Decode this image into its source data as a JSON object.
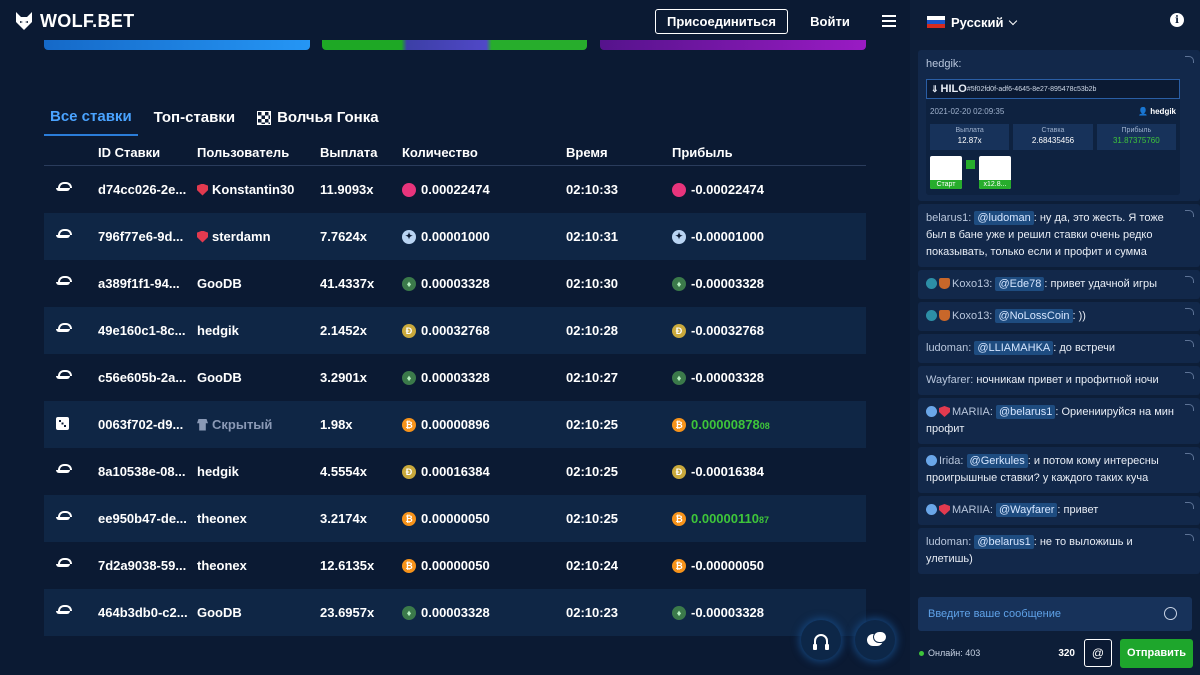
{
  "header": {
    "logo_text": "WOLF.BET",
    "join_label": "Присоединиться",
    "login_label": "Войти"
  },
  "tabs": [
    {
      "label": "Все ставки",
      "active": true
    },
    {
      "label": "Топ-ставки",
      "active": false
    },
    {
      "label": "Волчья Гонка",
      "active": false
    }
  ],
  "table": {
    "columns": [
      "ID Ставки",
      "Пользователь",
      "Выплата",
      "Количество",
      "Время",
      "Прибыль"
    ],
    "rows": [
      {
        "game": "hilo",
        "id": "d74cc026-2e...",
        "user": "Konstantin30",
        "user_badge": "shield",
        "payout": "11.9093x",
        "coin": "cake",
        "amount": "0.00022474",
        "time": "02:10:33",
        "profit": "-0.00022474",
        "profit_small": "",
        "win": false
      },
      {
        "game": "hilo",
        "id": "796f77e6-9d...",
        "user": "sterdamn",
        "user_badge": "shield",
        "payout": "7.7624x",
        "coin": "xlm",
        "amount": "0.00001000",
        "time": "02:10:31",
        "profit": "-0.00001000",
        "profit_small": "",
        "win": false
      },
      {
        "game": "hilo",
        "id": "a389f1f1-94...",
        "user": "GooDB",
        "user_badge": "",
        "payout": "41.4337x",
        "coin": "etc",
        "amount": "0.00003328",
        "time": "02:10:30",
        "profit": "-0.00003328",
        "profit_small": "",
        "win": false
      },
      {
        "game": "hilo",
        "id": "49e160c1-8c...",
        "user": "hedgik",
        "user_badge": "",
        "payout": "2.1452x",
        "coin": "doge",
        "amount": "0.00032768",
        "time": "02:10:28",
        "profit": "-0.00032768",
        "profit_small": "",
        "win": false
      },
      {
        "game": "hilo",
        "id": "c56e605b-2a...",
        "user": "GooDB",
        "user_badge": "",
        "payout": "3.2901x",
        "coin": "etc",
        "amount": "0.00003328",
        "time": "02:10:27",
        "profit": "-0.00003328",
        "profit_small": "",
        "win": false
      },
      {
        "game": "dice",
        "id": "0063f702-d9...",
        "user": "Скрытый",
        "user_badge": "spy",
        "payout": "1.98x",
        "coin": "btc",
        "amount": "0.00000896",
        "time": "02:10:25",
        "profit": "0.00000878",
        "profit_small": "08",
        "win": true
      },
      {
        "game": "hilo",
        "id": "8a10538e-08...",
        "user": "hedgik",
        "user_badge": "",
        "payout": "4.5554x",
        "coin": "doge",
        "amount": "0.00016384",
        "time": "02:10:25",
        "profit": "-0.00016384",
        "profit_small": "",
        "win": false
      },
      {
        "game": "hilo",
        "id": "ee950b47-de...",
        "user": "theonex",
        "user_badge": "",
        "payout": "3.2174x",
        "coin": "btc",
        "amount": "0.00000050",
        "time": "02:10:25",
        "profit": "0.00000110",
        "profit_small": "87",
        "win": true
      },
      {
        "game": "hilo",
        "id": "7d2a9038-59...",
        "user": "theonex",
        "user_badge": "",
        "payout": "12.6135x",
        "coin": "btc",
        "amount": "0.00000050",
        "time": "02:10:24",
        "profit": "-0.00000050",
        "profit_small": "",
        "win": false
      },
      {
        "game": "hilo",
        "id": "464b3db0-c2...",
        "user": "GooDB",
        "user_badge": "",
        "payout": "23.6957x",
        "coin": "etc",
        "amount": "0.00003328",
        "time": "02:10:23",
        "profit": "-0.00003328",
        "profit_small": "",
        "win": false
      }
    ]
  },
  "chat": {
    "language": "Русский",
    "first_message": {
      "nick": "hedgik:",
      "card": {
        "title": "HILO",
        "id": "#5f02fd0f-adf6-4645-8e27-895478c53b2b",
        "date": "2021-02-20 02:09:35",
        "user": "hedgik",
        "stats": [
          {
            "label": "Выплата",
            "value": "12.87x"
          },
          {
            "label": "Ставка",
            "value": "2.68435456"
          },
          {
            "label": "Прибыль",
            "value": "31.87375760"
          }
        ],
        "card_labels": [
          "Старт",
          "x12.8..."
        ]
      }
    },
    "messages": [
      {
        "badges": [],
        "nick": "belarus1:",
        "mention": "@ludoman",
        "text": ": ну да, это жесть. Я тоже был в бане уже и решил ставки очень редко показывать, только если и профит и сумма"
      },
      {
        "badges": [
          "wolf",
          "cup"
        ],
        "nick": "Koxo13:",
        "mention": "@Ede78",
        "text": ": привет удачной игры"
      },
      {
        "badges": [
          "wolf",
          "cup"
        ],
        "nick": "Koxo13:",
        "mention": "@NoLossCoin",
        "text": ": ))"
      },
      {
        "badges": [],
        "nick": "ludoman:",
        "mention": "@LLIAMAHKA",
        "text": ": до встречи"
      },
      {
        "badges": [],
        "nick": "Wayfarer:",
        "mention": "",
        "text": "ночникам привет и профитной ночи"
      },
      {
        "badges": [
          "users",
          "shield2"
        ],
        "nick": "MARIIA:",
        "mention": "@belarus1",
        "text": ": Ориениируйся на мин профит"
      },
      {
        "badges": [
          "users"
        ],
        "nick": "Irida:",
        "mention": "@Gerkules",
        "text": ": и потом кому интересны проигрышные ставки? у каждого таких куча"
      },
      {
        "badges": [
          "users",
          "shield2"
        ],
        "nick": "MARIIA:",
        "mention": "@Wayfarer",
        "text": ": привет"
      },
      {
        "badges": [],
        "nick": "ludoman:",
        "mention": "@belarus1",
        "text": ": не то выложишь и улетишь)"
      }
    ],
    "input_placeholder": "Введите ваше сообщение",
    "online_label": "Онлайн: 403",
    "char_counter": "320",
    "at_label": "@",
    "send_label": "Отправить"
  }
}
